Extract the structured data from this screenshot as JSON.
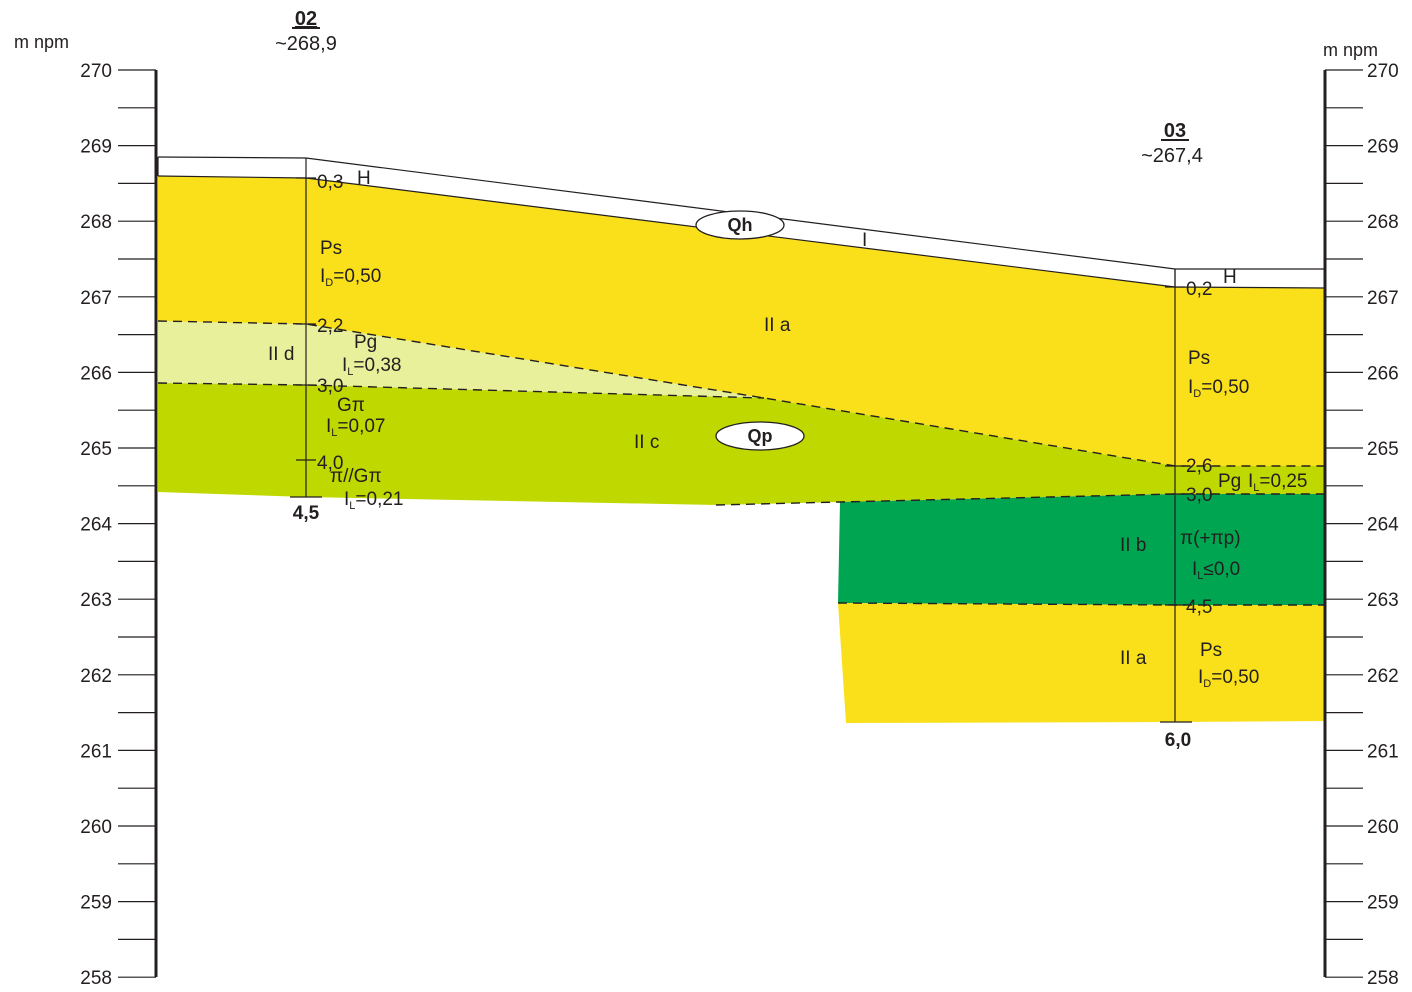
{
  "axis": {
    "unit_label_left": "m npm",
    "unit_label_right": "m npm",
    "levels": [
      "270",
      "269",
      "268",
      "267",
      "266",
      "265",
      "264",
      "263",
      "262",
      "261",
      "260",
      "259",
      "258"
    ]
  },
  "boreholes": [
    {
      "id": "02",
      "elevation": "~268,9",
      "final_depth": "4,5",
      "depths": [
        "0,3",
        "2,2",
        "3,0",
        "4,0"
      ],
      "layer_labels": [
        "H",
        "Ps",
        "I",
        "D",
        "=0,50",
        "Pg",
        "I",
        "L",
        "=0,38",
        "Gπ",
        "I",
        "L",
        "=0,07",
        "π//Gπ",
        "I",
        "L",
        "=0,21"
      ]
    },
    {
      "id": "03",
      "elevation": "~267,4",
      "final_depth": "6,0",
      "depths": [
        "0,2",
        "2,6",
        "3,0",
        "4,5"
      ],
      "layer_labels": [
        "H",
        "Ps",
        "I",
        "D",
        "=0,50",
        "Pg",
        "I",
        "L",
        "=0,25",
        "π(+πp)",
        "I",
        "L",
        "≤0,0",
        "Ps",
        "I",
        "D",
        "=0,50"
      ]
    }
  ],
  "geotech_layers": [
    "II a",
    "II b",
    "II c",
    "II d",
    "I",
    "II a"
  ],
  "stratigraphy": [
    "Qh",
    "Qp"
  ],
  "colors": {
    "fill_sand": "#f9e01b",
    "fill_light": "#e8f09b",
    "fill_midgreen": "#bfd800",
    "fill_darkgreen": "#00a551",
    "line": "#231f20"
  }
}
